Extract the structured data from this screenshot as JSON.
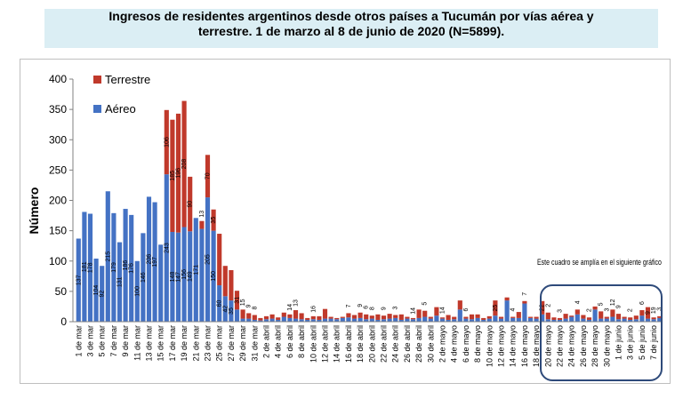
{
  "chart_data": {
    "type": "bar",
    "stacked": true,
    "title_line1": "Ingresos de residentes argentinos desde otros países a Tucumán por vías aérea y",
    "title_line2": "terrestre. 1 de marzo al 8 de junio de 2020 (N=5899).",
    "ylabel": "Número",
    "xlabel": "",
    "ylim": [
      0,
      400
    ],
    "yticks": [
      0,
      50,
      100,
      150,
      200,
      250,
      300,
      350,
      400
    ],
    "grid": false,
    "legend_position": "top-left",
    "annotation": "Este cuadro se amplía en el siguiente gráfico",
    "x_tick_labels": [
      "1 de mar",
      "3 de mar",
      "5 de mar",
      "7 de mar",
      "9 de mar",
      "11 de mar",
      "13 de mar",
      "15 de mar",
      "17 de mar",
      "19 de mar",
      "21 de mar",
      "23 de mar",
      "25 de mar",
      "27 de mar",
      "29 de mar",
      "31 de mar",
      "2 de abril",
      "4 de abril",
      "6 de abril",
      "8 de abril",
      "10 de abril",
      "12 de abril",
      "14 de abril",
      "16 de abril",
      "18 de abril",
      "20 de abril",
      "22 de abril",
      "24 de abril",
      "26 de abril",
      "28 de abril",
      "30 de abril",
      "2 de mayo",
      "4 de mayo",
      "6 de mayo",
      "8 de mayo",
      "10 de mayo",
      "12 de mayo",
      "14 de mayo",
      "16 de mayo",
      "18 de mayo",
      "20 de mayo",
      "22 de mayo",
      "24 de mayo",
      "26 de mayo",
      "28 de mayo",
      "30 de mayo",
      "1 de junio",
      "3 de junio",
      "5 de junio",
      "7 de junio"
    ],
    "series": [
      {
        "name": "Aéreo",
        "color": "#4472c4",
        "values": [
          137,
          181,
          178,
          104,
          92,
          215,
          179,
          131,
          186,
          176,
          100,
          146,
          206,
          197,
          127,
          243,
          148,
          147,
          156,
          149,
          171,
          153,
          205,
          150,
          60,
          42,
          35,
          20,
          5,
          5,
          3,
          2,
          4,
          5,
          3,
          8,
          6,
          5,
          4,
          3,
          4,
          3,
          5,
          5,
          4,
          6,
          7,
          5,
          6,
          4,
          5,
          3,
          4,
          5,
          6,
          3,
          5,
          4,
          6,
          8,
          5,
          10,
          5,
          3,
          4,
          20,
          5,
          4,
          6,
          3,
          5,
          10,
          5,
          35,
          6,
          6,
          30,
          6,
          5,
          12,
          4,
          3,
          3,
          5,
          8,
          12,
          5,
          3,
          20,
          5,
          5,
          8,
          4,
          5,
          3,
          4,
          10,
          5,
          4,
          6
        ]
      },
      {
        "name": "Terrestre",
        "color": "#c0392b",
        "values": [
          0,
          0,
          0,
          0,
          0,
          0,
          0,
          0,
          0,
          0,
          0,
          0,
          0,
          0,
          0,
          106,
          185,
          196,
          208,
          90,
          0,
          13,
          70,
          35,
          85,
          50,
          50,
          31,
          15,
          9,
          8,
          4,
          5,
          7,
          4,
          7,
          6,
          14,
          10,
          3,
          5,
          6,
          16,
          3,
          2,
          2,
          7,
          6,
          9,
          8,
          5,
          9,
          6,
          8,
          5,
          9,
          3,
          2,
          14,
          10,
          3,
          14,
          2,
          8,
          4,
          15,
          3,
          8,
          6,
          3,
          4,
          25,
          3,
          5,
          2,
          10,
          4,
          2,
          3,
          22,
          11,
          4,
          3,
          8,
          2,
          8,
          6,
          4,
          5,
          12,
          3,
          12,
          9,
          3,
          4,
          6,
          9,
          19,
          3,
          3
        ]
      }
    ],
    "data_labels": [
      {
        "day": 1,
        "text": "137"
      },
      {
        "day": 2,
        "text": "181"
      },
      {
        "day": 3,
        "text": "178"
      },
      {
        "day": 4,
        "text": "104"
      },
      {
        "day": 5,
        "text": "92"
      },
      {
        "day": 6,
        "text": "215"
      },
      {
        "day": 7,
        "text": "179"
      },
      {
        "day": 8,
        "text": "131"
      },
      {
        "day": 9,
        "text": "186"
      },
      {
        "day": 10,
        "text": "176"
      },
      {
        "day": 11,
        "text": "100"
      },
      {
        "day": 12,
        "text": "146"
      },
      {
        "day": 13,
        "text": "206"
      },
      {
        "day": 14,
        "text": "197"
      },
      {
        "day": 16,
        "text": "243"
      },
      {
        "day": 16,
        "text": "106"
      },
      {
        "day": 17,
        "text": "148"
      },
      {
        "day": 17,
        "text": "185"
      },
      {
        "day": 18,
        "text": "147"
      },
      {
        "day": 18,
        "text": "196"
      },
      {
        "day": 19,
        "text": "156"
      },
      {
        "day": 19,
        "text": "208"
      },
      {
        "day": 20,
        "text": "149"
      },
      {
        "day": 20,
        "text": "90"
      },
      {
        "day": 21,
        "text": "171"
      },
      {
        "day": 22,
        "text": "13"
      },
      {
        "day": 23,
        "text": "205"
      },
      {
        "day": 23,
        "text": "70"
      },
      {
        "day": 24,
        "text": "150"
      },
      {
        "day": 24,
        "text": "35"
      },
      {
        "day": 25,
        "text": "60"
      },
      {
        "day": 26,
        "text": "42"
      },
      {
        "day": 27,
        "text": "35"
      },
      {
        "day": 28,
        "text": "31"
      },
      {
        "day": 29,
        "text": "15"
      },
      {
        "day": 30,
        "text": "9"
      },
      {
        "day": 31,
        "text": "8"
      },
      {
        "day": 37,
        "text": "14"
      },
      {
        "day": 38,
        "text": "13"
      },
      {
        "day": 41,
        "text": "16"
      },
      {
        "day": 47,
        "text": "7"
      },
      {
        "day": 49,
        "text": "9"
      },
      {
        "day": 50,
        "text": "6"
      },
      {
        "day": 51,
        "text": "8"
      },
      {
        "day": 53,
        "text": "9"
      },
      {
        "day": 55,
        "text": "3"
      },
      {
        "day": 58,
        "text": "14"
      },
      {
        "day": 60,
        "text": "5"
      },
      {
        "day": 63,
        "text": "14"
      },
      {
        "day": 67,
        "text": "6"
      },
      {
        "day": 72,
        "text": "25"
      },
      {
        "day": 75,
        "text": "4"
      },
      {
        "day": 77,
        "text": "7"
      },
      {
        "day": 80,
        "text": "22"
      },
      {
        "day": 81,
        "text": "2"
      },
      {
        "day": 83,
        "text": "3"
      },
      {
        "day": 86,
        "text": "4"
      },
      {
        "day": 88,
        "text": "2"
      },
      {
        "day": 90,
        "text": "5"
      },
      {
        "day": 91,
        "text": "3"
      },
      {
        "day": 92,
        "text": "12"
      },
      {
        "day": 93,
        "text": "9"
      },
      {
        "day": 95,
        "text": "2"
      },
      {
        "day": 97,
        "text": "6"
      },
      {
        "day": 98,
        "text": "9"
      },
      {
        "day": 99,
        "text": "19"
      },
      {
        "day": 100,
        "text": "3"
      }
    ]
  },
  "legend": {
    "terrestre_label": "Terrestre",
    "aereo_label": "Aéreo"
  }
}
